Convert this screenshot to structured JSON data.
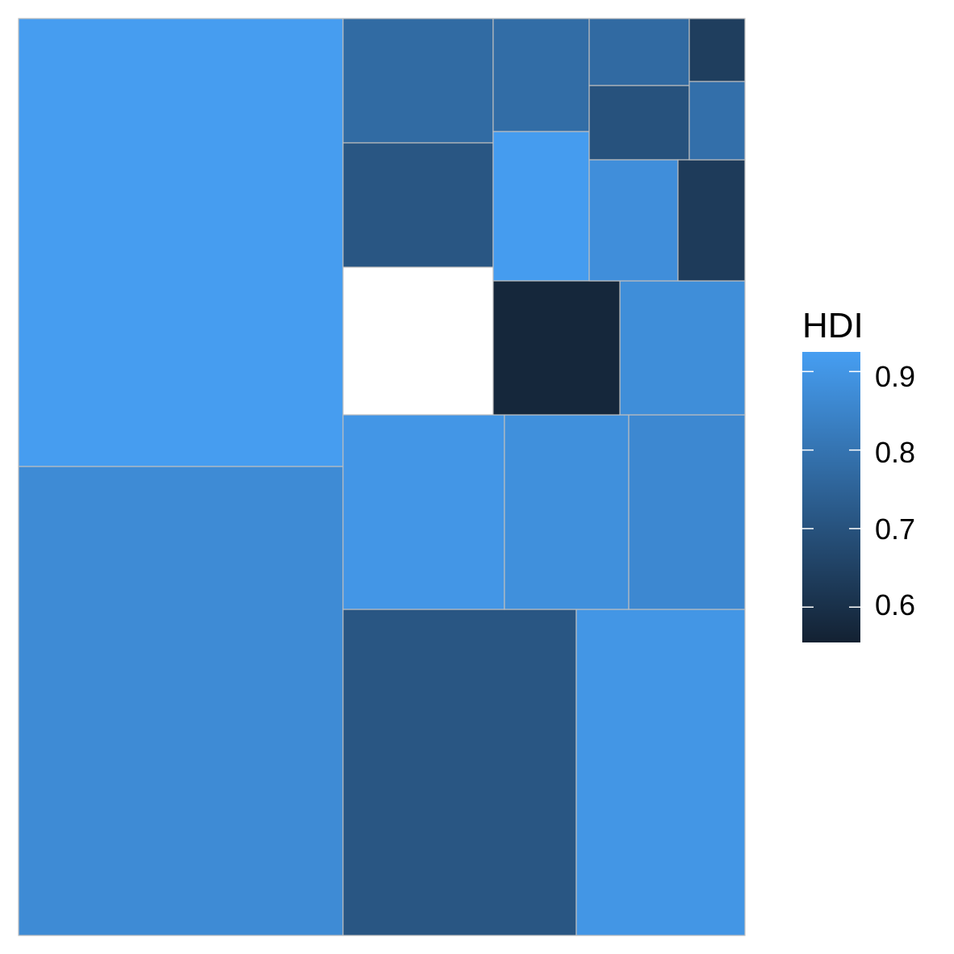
{
  "chart_data": {
    "type": "treemap",
    "title": "",
    "fill_variable": "HDI",
    "tile_labels": "none",
    "color_scale": {
      "low_color": "#132132",
      "high_color": "#469EF2",
      "limits": [
        0.555,
        0.925
      ],
      "breaks": [
        0.6,
        0.7,
        0.8,
        0.9
      ]
    },
    "tiles": [
      {
        "id": "t01",
        "hdi": 0.922
      },
      {
        "id": "t02",
        "hdi": 0.869
      },
      {
        "id": "t03",
        "hdi": 0.711
      },
      {
        "id": "t04",
        "hdi": 0.9
      },
      {
        "id": "t05",
        "hdi": 0.773
      },
      {
        "id": "t06",
        "hdi": 0.711
      },
      {
        "id": "t07",
        "hdi": 0.901
      },
      {
        "id": "t08",
        "hdi": 0.883
      },
      {
        "id": "t09",
        "hdi": 0.861
      },
      {
        "id": "t10",
        "hdi": 0.877
      },
      {
        "id": "t11",
        "hdi": 0.779
      },
      {
        "id": "t12",
        "hdi": 0.92
      },
      {
        "id": "t13",
        "hdi": 0.573
      },
      {
        "id": "t14",
        "hdi": 0.771
      },
      {
        "id": "t15",
        "hdi": 0.7
      },
      {
        "id": "t16",
        "hdi": 0.879
      },
      {
        "id": "t17",
        "hdi": 0.64
      },
      {
        "id": "t18",
        "hdi": 0.632
      },
      {
        "id": "t19",
        "hdi": 0.787
      }
    ]
  },
  "legend": {
    "title": "HDI",
    "labels": [
      "0.9",
      "0.8",
      "0.7",
      "0.6"
    ]
  }
}
